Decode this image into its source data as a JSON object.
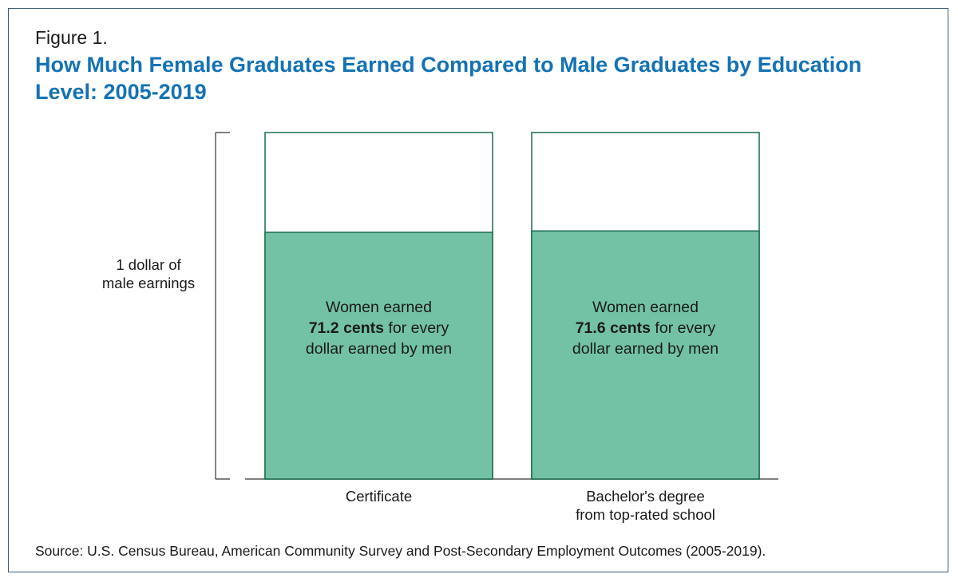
{
  "figure": {
    "label": "Figure 1.",
    "title": "How Much Female Graduates Earned Compared to Male Graduates by Education Level: 2005-2019",
    "source": "Source: U.S. Census Bureau, American Community Survey and Post-Secondary Employment Outcomes (2005-2019)."
  },
  "colors": {
    "title": "#1472b4",
    "bar_fill": "#73c2a5",
    "bar_outline": "#1b6b4d",
    "frame": "#3b5a7a"
  },
  "chart_data": {
    "type": "bar",
    "title": "How Much Female Graduates Earned Compared to Male Graduates by Education Level: 2005-2019",
    "bracket_label": [
      "1 dollar of",
      "male earnings"
    ],
    "scale_max": 1.0,
    "ylim": [
      0,
      1.0
    ],
    "grid": false,
    "categories": [
      [
        "Certificate"
      ],
      [
        "Bachelor's degree",
        "from top-rated school"
      ]
    ],
    "values": [
      0.712,
      0.716
    ],
    "annotations": [
      {
        "line1": "Women earned",
        "bold": "71.2 cents",
        "rest": " for every",
        "line3": "dollar earned by men"
      },
      {
        "line1": "Women earned",
        "bold": "71.6 cents",
        "rest": " for every",
        "line3": "dollar earned by men"
      }
    ]
  }
}
